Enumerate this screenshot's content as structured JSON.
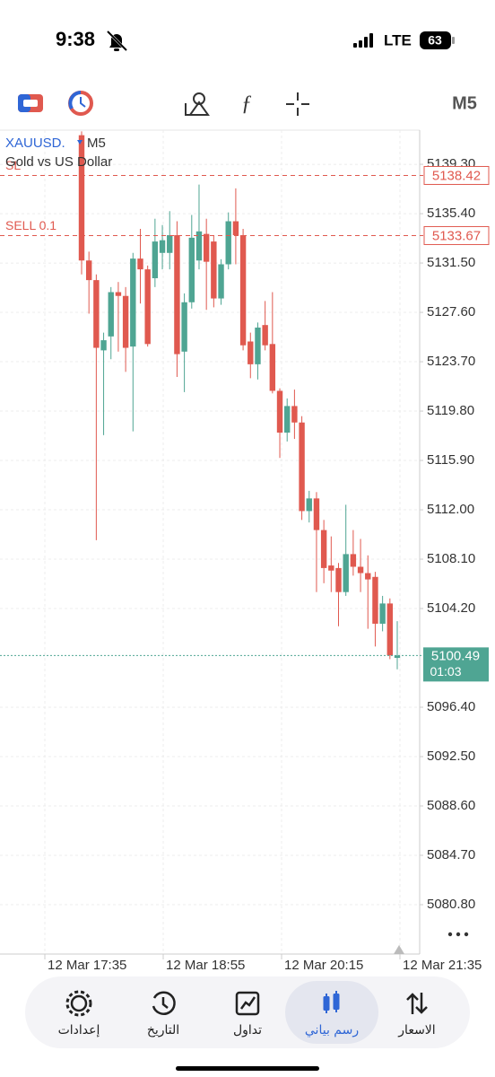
{
  "status_bar": {
    "time": "9:38",
    "network": "LTE",
    "battery": "63"
  },
  "toolbar": {
    "timeframe": "M5"
  },
  "chart_data": {
    "type": "candlestick",
    "symbol": "XAUUSD.",
    "timeframe": "M5",
    "description": "Gold vs US Dollar",
    "ylim": [
      5076.9,
      5142.0
    ],
    "yticks": [
      {
        "value": 5139.3,
        "label": "5139.30"
      },
      {
        "value": 5135.4,
        "label": "5135.40"
      },
      {
        "value": 5131.5,
        "label": "5131.50"
      },
      {
        "value": 5127.6,
        "label": "5127.60"
      },
      {
        "value": 5123.7,
        "label": "5123.70"
      },
      {
        "value": 5119.8,
        "label": "5119.80"
      },
      {
        "value": 5115.9,
        "label": "5115.90"
      },
      {
        "value": 5112,
        "label": "5112.00"
      },
      {
        "value": 5108.1,
        "label": "5108.10"
      },
      {
        "value": 5104.2,
        "label": "5104.20"
      },
      {
        "value": 5096.4,
        "label": "5096.40"
      },
      {
        "value": 5092.5,
        "label": "5092.50"
      },
      {
        "value": 5088.6,
        "label": "5088.60"
      },
      {
        "value": 5084.7,
        "label": "5084.70"
      },
      {
        "value": 5080.8,
        "label": "5080.80"
      }
    ],
    "x_labels": [
      "12 Mar 17:35",
      "12 Mar 18:55",
      "12 Mar 20:15",
      "12 Mar 21:35"
    ],
    "open": [
      5141.6,
      5131.7,
      5130.15,
      5124.6,
      5125.7,
      5129.2,
      5128.9,
      5124.9,
      5131.85,
      5131.0,
      5130.3,
      5132.3,
      5132.3,
      5133.7,
      5124.5,
      5128.4,
      5131.7,
      5133.8,
      5133.2,
      5128.7,
      5131.4,
      5134.8,
      5133.7,
      5125.3,
      5123.5,
      5126.6,
      5125.1,
      5121.4,
      5118.1,
      5120.2,
      5118.9,
      5111.9,
      5112.9,
      5110.4,
      5107.6,
      5107.4,
      5105.5,
      5108.5,
      5107.5,
      5107.0,
      5106.7,
      5103.0,
      5104.6,
      5100.3
    ],
    "high": [
      5141.9,
      5132.4,
      5130.6,
      5126.0,
      5129.6,
      5130.0,
      5129.6,
      5132.3,
      5134.2,
      5131.3,
      5135.0,
      5134.5,
      5135.6,
      5134.8,
      5129.1,
      5135.3,
      5137.7,
      5135.0,
      5133.7,
      5131.8,
      5135.5,
      5137.4,
      5134.2,
      5126.0,
      5126.8,
      5128.5,
      5129.2,
      5121.6,
      5120.8,
      5121.5,
      5119.4,
      5113.5,
      5113.4,
      5111.2,
      5109.9,
      5107.8,
      5112.4,
      5110.4,
      5109.7,
      5108.4,
      5107.1,
      5105.2,
      5105.0,
      5103.2
    ],
    "low": [
      5130.6,
      5127.5,
      5109.6,
      5117.9,
      5123.9,
      5124.5,
      5122.9,
      5118.2,
      5128.3,
      5124.9,
      5129.6,
      5131.0,
      5131.0,
      5122.5,
      5121.3,
      5127.9,
      5131.0,
      5127.8,
      5128.0,
      5128.2,
      5131.0,
      5131.4,
      5124.6,
      5122.4,
      5122.3,
      5124.6,
      5121.2,
      5116.1,
      5117.4,
      5117.6,
      5111.2,
      5111.0,
      5105.5,
      5106.2,
      5105.5,
      5102.8,
      5105.2,
      5106.8,
      5105.5,
      5102.6,
      5101.2,
      5102.4,
      5100.2,
      5099.4
    ],
    "close": [
      5131.7,
      5130.15,
      5124.8,
      5125.4,
      5129.2,
      5128.9,
      5124.8,
      5131.85,
      5131.0,
      5125.1,
      5133.2,
      5133.3,
      5133.7,
      5124.3,
      5128.4,
      5133.5,
      5134.0,
      5131.6,
      5128.7,
      5131.4,
      5134.8,
      5133.7,
      5125.0,
      5123.5,
      5126.4,
      5125.0,
      5121.4,
      5118.1,
      5120.2,
      5118.9,
      5111.9,
      5112.9,
      5110.4,
      5107.4,
      5107.2,
      5105.5,
      5108.5,
      5107.5,
      5107.0,
      5106.5,
      5103.0,
      5104.6,
      5100.5,
      5100.49
    ],
    "up_color": "#4fa593",
    "down_color": "#e0594f",
    "levels": [
      {
        "label": "SL",
        "value": 5138.42,
        "color": "#e0594f"
      },
      {
        "label": "SELL 0.1",
        "value": 5133.67,
        "color": "#e0594f"
      }
    ],
    "last_price": 5100.49,
    "countdown": "01:03",
    "last_color": "#4fa593",
    "grid": true
  },
  "nav": {
    "active": 3,
    "items": [
      {
        "label": "إعدادات"
      },
      {
        "label": "التاريخ"
      },
      {
        "label": "تداول"
      },
      {
        "label": "رسم بياني"
      },
      {
        "label": "الاسعار"
      }
    ]
  }
}
